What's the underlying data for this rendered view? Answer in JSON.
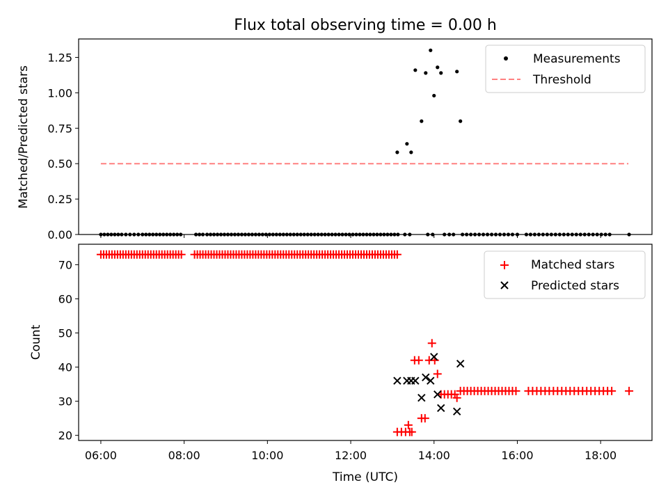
{
  "title": "Flux total observing time = 0.00 h",
  "colors": {
    "measurements": "#000000",
    "threshold": "#ff8080",
    "matched": "#ff0000",
    "predicted": "#000000"
  },
  "chart_data": [
    {
      "type": "scatter",
      "ylabel": "Matched/Predicted stars",
      "xlabel": "",
      "xlim": [
        "05:28",
        "19:14"
      ],
      "ylim": [
        0,
        1.38
      ],
      "yticks": [
        "0.00",
        "0.25",
        "0.50",
        "0.75",
        "1.00",
        "1.25"
      ],
      "legend": {
        "position": "top-right",
        "entries": [
          "Measurements",
          "Threshold"
        ]
      },
      "series": [
        {
          "name": "Measurements",
          "marker": "dot",
          "zero_x": [
            "06:00",
            "06:05",
            "06:10",
            "06:15",
            "06:20",
            "06:25",
            "06:30",
            "06:36",
            "06:42",
            "06:48",
            "06:54",
            "07:00",
            "07:05",
            "07:10",
            "07:15",
            "07:20",
            "07:25",
            "07:30",
            "07:35",
            "07:40",
            "07:45",
            "07:50",
            "07:55",
            "08:17",
            "08:22",
            "08:27",
            "08:33",
            "08:38",
            "08:43",
            "08:48",
            "08:53",
            "08:58",
            "09:03",
            "09:08",
            "09:13",
            "09:18",
            "09:23",
            "09:28",
            "09:33",
            "09:38",
            "09:43",
            "09:48",
            "09:53",
            "09:58",
            "10:03",
            "10:08",
            "10:13",
            "10:18",
            "10:23",
            "10:28",
            "10:33",
            "10:38",
            "10:43",
            "10:48",
            "10:53",
            "10:58",
            "11:03",
            "11:08",
            "11:13",
            "11:18",
            "11:23",
            "11:28",
            "11:33",
            "11:38",
            "11:43",
            "11:48",
            "11:53",
            "11:58",
            "12:03",
            "12:08",
            "12:13",
            "12:18",
            "12:23",
            "12:28",
            "12:33",
            "12:38",
            "12:43",
            "12:48",
            "12:53",
            "12:58",
            "13:03",
            "13:08",
            "13:18",
            "13:25",
            "13:51",
            "13:58",
            "14:15",
            "14:22",
            "14:28",
            "14:41",
            "14:47",
            "14:53",
            "14:59",
            "15:05",
            "15:11",
            "15:17",
            "15:23",
            "15:29",
            "15:35",
            "15:41",
            "15:47",
            "15:53",
            "16:00",
            "16:13",
            "16:19",
            "16:25",
            "16:31",
            "16:37",
            "16:43",
            "16:49",
            "16:55",
            "17:01",
            "17:07",
            "17:13",
            "17:19",
            "17:25",
            "17:31",
            "17:37",
            "17:43",
            "17:49",
            "17:55",
            "18:01",
            "18:07",
            "18:13",
            "18:41"
          ],
          "points": [
            {
              "x": "13:07",
              "y": 0.58
            },
            {
              "x": "13:21",
              "y": 0.64
            },
            {
              "x": "13:27",
              "y": 0.58
            },
            {
              "x": "13:33",
              "y": 1.16
            },
            {
              "x": "13:42",
              "y": 0.8
            },
            {
              "x": "13:48",
              "y": 1.14
            },
            {
              "x": "13:55",
              "y": 1.3
            },
            {
              "x": "14:00",
              "y": 0.98
            },
            {
              "x": "14:05",
              "y": 1.18
            },
            {
              "x": "14:10",
              "y": 1.14
            },
            {
              "x": "14:33",
              "y": 1.15
            },
            {
              "x": "14:38",
              "y": 0.8
            }
          ]
        },
        {
          "name": "Threshold",
          "style": "dashed",
          "x": [
            "06:00",
            "18:40"
          ],
          "y": [
            0.5,
            0.5
          ]
        }
      ]
    },
    {
      "type": "scatter",
      "xlabel": "Time (UTC)",
      "ylabel": "Count",
      "xlim": [
        "05:28",
        "19:14"
      ],
      "ylim": [
        18.5,
        76
      ],
      "xticks": [
        "06:00",
        "08:00",
        "10:00",
        "12:00",
        "14:00",
        "16:00",
        "18:00"
      ],
      "yticks": [
        "20",
        "30",
        "40",
        "50",
        "60",
        "70"
      ],
      "legend": {
        "position": "top-right",
        "entries": [
          "Matched stars",
          "Predicted stars"
        ]
      },
      "series": [
        {
          "name": "Matched stars",
          "marker": "plus",
          "constant_runs": [
            {
              "y": 73,
              "x": [
                "06:00",
                "06:04",
                "06:08",
                "06:12",
                "06:16",
                "06:20",
                "06:24",
                "06:28",
                "06:32",
                "06:36",
                "06:40",
                "06:44",
                "06:48",
                "06:52",
                "06:56",
                "07:00",
                "07:04",
                "07:08",
                "07:12",
                "07:16",
                "07:20",
                "07:24",
                "07:28",
                "07:32",
                "07:36",
                "07:40",
                "07:44",
                "07:48",
                "07:52",
                "07:56",
                "08:15",
                "08:19",
                "08:23",
                "08:27",
                "08:31",
                "08:35",
                "08:39",
                "08:43",
                "08:47",
                "08:51",
                "08:55",
                "08:59",
                "09:03",
                "09:07",
                "09:11",
                "09:15",
                "09:19",
                "09:23",
                "09:27",
                "09:31",
                "09:35",
                "09:39",
                "09:43",
                "09:47",
                "09:51",
                "09:55",
                "09:59",
                "10:03",
                "10:07",
                "10:11",
                "10:15",
                "10:19",
                "10:23",
                "10:27",
                "10:31",
                "10:35",
                "10:39",
                "10:43",
                "10:47",
                "10:51",
                "10:55",
                "10:59",
                "11:03",
                "11:07",
                "11:11",
                "11:15",
                "11:19",
                "11:23",
                "11:27",
                "11:31",
                "11:35",
                "11:39",
                "11:43",
                "11:47",
                "11:51",
                "11:55",
                "11:59",
                "12:03",
                "12:07",
                "12:11",
                "12:15",
                "12:19",
                "12:23",
                "12:27",
                "12:31",
                "12:35",
                "12:39",
                "12:43",
                "12:47",
                "12:51",
                "12:55",
                "12:59",
                "13:03",
                "13:07"
              ]
            },
            {
              "y": 33,
              "x": [
                "14:38",
                "14:43",
                "14:48",
                "14:53",
                "14:58",
                "15:03",
                "15:08",
                "15:13",
                "15:18",
                "15:23",
                "15:28",
                "15:33",
                "15:38",
                "15:43",
                "15:48",
                "15:53",
                "15:58",
                "16:16",
                "16:22",
                "16:28",
                "16:34",
                "16:40",
                "16:46",
                "16:52",
                "16:58",
                "17:04",
                "17:10",
                "17:16",
                "17:22",
                "17:28",
                "17:34",
                "17:40",
                "17:46",
                "17:52",
                "17:58",
                "18:04",
                "18:10",
                "18:16",
                "18:41"
              ]
            }
          ],
          "points": [
            {
              "x": "13:07",
              "y": 21
            },
            {
              "x": "13:13",
              "y": 21
            },
            {
              "x": "13:19",
              "y": 21
            },
            {
              "x": "13:23",
              "y": 23
            },
            {
              "x": "13:25",
              "y": 21
            },
            {
              "x": "13:28",
              "y": 21
            },
            {
              "x": "13:32",
              "y": 42
            },
            {
              "x": "13:38",
              "y": 42
            },
            {
              "x": "13:42",
              "y": 25
            },
            {
              "x": "13:47",
              "y": 25
            },
            {
              "x": "13:53",
              "y": 42
            },
            {
              "x": "13:57",
              "y": 47
            },
            {
              "x": "14:01",
              "y": 42
            },
            {
              "x": "14:05",
              "y": 38
            },
            {
              "x": "14:10",
              "y": 32
            },
            {
              "x": "14:15",
              "y": 32
            },
            {
              "x": "14:20",
              "y": 32
            },
            {
              "x": "14:25",
              "y": 32
            },
            {
              "x": "14:30",
              "y": 32
            },
            {
              "x": "14:33",
              "y": 31
            }
          ]
        },
        {
          "name": "Predicted stars",
          "marker": "x",
          "points": [
            {
              "x": "13:07",
              "y": 36
            },
            {
              "x": "13:21",
              "y": 36
            },
            {
              "x": "13:27",
              "y": 36
            },
            {
              "x": "13:33",
              "y": 36
            },
            {
              "x": "13:42",
              "y": 31
            },
            {
              "x": "13:48",
              "y": 37
            },
            {
              "x": "13:55",
              "y": 36
            },
            {
              "x": "14:00",
              "y": 43
            },
            {
              "x": "14:05",
              "y": 32
            },
            {
              "x": "14:10",
              "y": 28
            },
            {
              "x": "14:33",
              "y": 27
            },
            {
              "x": "14:38",
              "y": 41
            }
          ]
        }
      ]
    }
  ]
}
